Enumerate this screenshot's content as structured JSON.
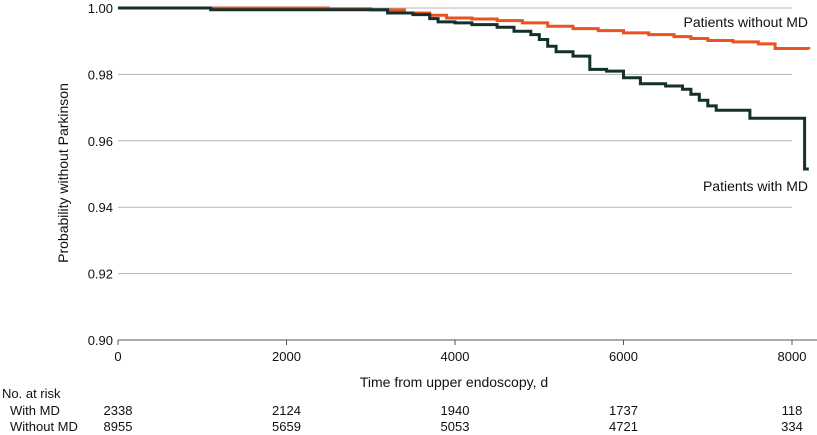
{
  "chart_data": {
    "type": "line",
    "xlabel": "Time from upper endoscopy, d",
    "ylabel": "Probability without Parkinson",
    "xlim": [
      0,
      8200
    ],
    "ylim": [
      0.9,
      1.0
    ],
    "x_ticks": [
      0,
      2000,
      4000,
      6000,
      8000
    ],
    "x_tick_labels": [
      "0",
      "2000",
      "4000",
      "6000",
      "8000"
    ],
    "y_ticks": [
      0.9,
      0.92,
      0.94,
      0.96,
      0.98,
      1.0
    ],
    "y_tick_labels": [
      "0.90",
      "0.92",
      "0.94",
      "0.96",
      "0.98",
      "1.00"
    ],
    "grid": "horizontal",
    "series": [
      {
        "name": "Patients without MD",
        "color": "#e8531f",
        "points": [
          [
            0,
            1.0
          ],
          [
            1800,
            1.0
          ],
          [
            2500,
            0.9998
          ],
          [
            3000,
            0.9994
          ],
          [
            3400,
            0.9985
          ],
          [
            3700,
            0.9978
          ],
          [
            3900,
            0.997
          ],
          [
            4200,
            0.9967
          ],
          [
            4500,
            0.9962
          ],
          [
            4800,
            0.9955
          ],
          [
            5100,
            0.9945
          ],
          [
            5400,
            0.9938
          ],
          [
            5700,
            0.9932
          ],
          [
            6000,
            0.9925
          ],
          [
            6300,
            0.992
          ],
          [
            6600,
            0.9914
          ],
          [
            6800,
            0.9908
          ],
          [
            7000,
            0.9902
          ],
          [
            7300,
            0.9898
          ],
          [
            7600,
            0.9892
          ],
          [
            7800,
            0.9878
          ],
          [
            8200,
            0.9876
          ]
        ]
      },
      {
        "name": "Patients with MD",
        "color": "#13302c",
        "points": [
          [
            0,
            1.0
          ],
          [
            1100,
            1.0
          ],
          [
            1100,
            0.9995
          ],
          [
            2800,
            0.9995
          ],
          [
            3200,
            0.9985
          ],
          [
            3500,
            0.998
          ],
          [
            3700,
            0.9968
          ],
          [
            3800,
            0.9958
          ],
          [
            4000,
            0.9955
          ],
          [
            4200,
            0.995
          ],
          [
            4500,
            0.9942
          ],
          [
            4700,
            0.993
          ],
          [
            4900,
            0.992
          ],
          [
            5000,
            0.9905
          ],
          [
            5100,
            0.9885
          ],
          [
            5200,
            0.9868
          ],
          [
            5400,
            0.9855
          ],
          [
            5600,
            0.9815
          ],
          [
            5800,
            0.981
          ],
          [
            6000,
            0.979
          ],
          [
            6200,
            0.9772
          ],
          [
            6500,
            0.9765
          ],
          [
            6700,
            0.9755
          ],
          [
            6800,
            0.974
          ],
          [
            6900,
            0.9722
          ],
          [
            7000,
            0.9705
          ],
          [
            7100,
            0.9692
          ],
          [
            7500,
            0.9668
          ],
          [
            8150,
            0.9668
          ],
          [
            8150,
            0.9515
          ],
          [
            8200,
            0.9515
          ]
        ]
      }
    ],
    "risk_table": {
      "title": "No. at risk",
      "x": [
        0,
        2000,
        4000,
        6000,
        8000
      ],
      "rows": [
        {
          "label": "With MD",
          "values": [
            "2338",
            "2124",
            "1940",
            "1737",
            "118"
          ]
        },
        {
          "label": "Without MD",
          "values": [
            "8955",
            "5659",
            "5053",
            "4721",
            "334"
          ]
        }
      ]
    }
  }
}
